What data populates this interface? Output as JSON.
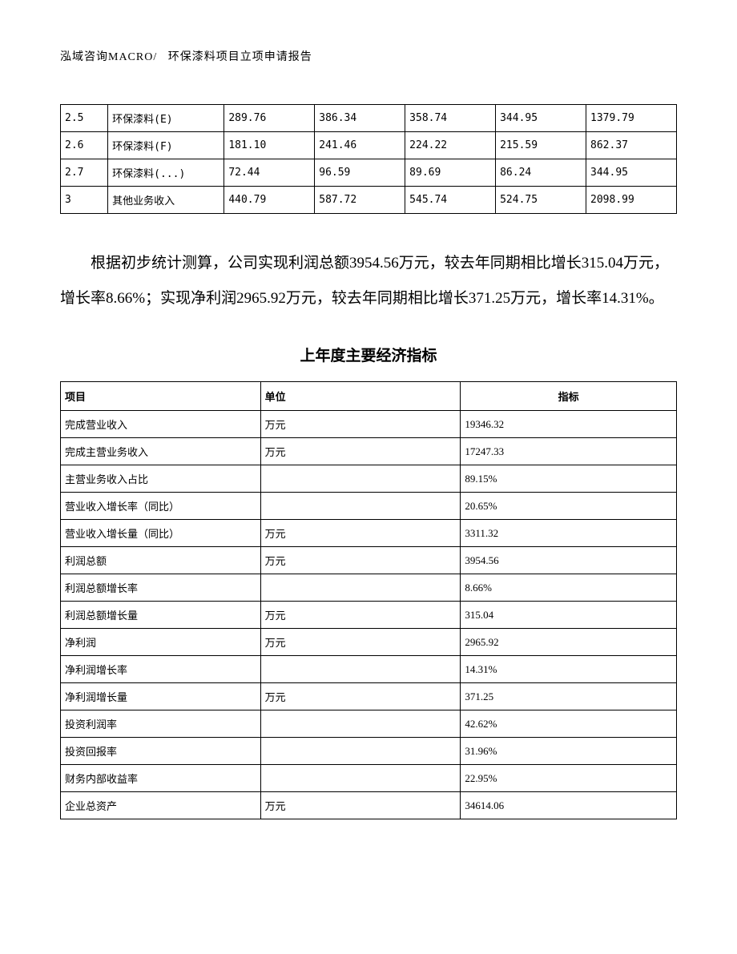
{
  "header": {
    "company": "泓域咨询MACRO/",
    "title": "环保漆料项目立项申请报告"
  },
  "table1": {
    "rows": [
      {
        "c1": "2.5",
        "c2": "环保漆料(E)",
        "c3": "289.76",
        "c4": "386.34",
        "c5": "358.74",
        "c6": "344.95",
        "c7": "1379.79"
      },
      {
        "c1": "2.6",
        "c2": "环保漆料(F)",
        "c3": "181.10",
        "c4": "241.46",
        "c5": "224.22",
        "c6": "215.59",
        "c7": "862.37"
      },
      {
        "c1": "2.7",
        "c2": "环保漆料(...)",
        "c3": "72.44",
        "c4": "96.59",
        "c5": "89.69",
        "c6": "86.24",
        "c7": "344.95"
      },
      {
        "c1": "3",
        "c2": "其他业务收入",
        "c3": "440.79",
        "c4": "587.72",
        "c5": "545.74",
        "c6": "524.75",
        "c7": "2098.99"
      }
    ]
  },
  "paragraph": "根据初步统计测算，公司实现利润总额3954.56万元，较去年同期相比增长315.04万元，增长率8.66%；实现净利润2965.92万元，较去年同期相比增长371.25万元，增长率14.31%。",
  "table2": {
    "title": "上年度主要经济指标",
    "headers": {
      "h1": "项目",
      "h2": "单位",
      "h3": "指标"
    },
    "rows": [
      {
        "c1": "完成营业收入",
        "c2": "万元",
        "c3": "19346.32"
      },
      {
        "c1": "完成主营业务收入",
        "c2": "万元",
        "c3": "17247.33"
      },
      {
        "c1": "主营业务收入占比",
        "c2": "",
        "c3": "89.15%"
      },
      {
        "c1": "营业收入增长率（同比）",
        "c2": "",
        "c3": "20.65%"
      },
      {
        "c1": "营业收入增长量（同比）",
        "c2": "万元",
        "c3": "3311.32"
      },
      {
        "c1": "利润总额",
        "c2": "万元",
        "c3": "3954.56"
      },
      {
        "c1": "利润总额增长率",
        "c2": "",
        "c3": "8.66%"
      },
      {
        "c1": "利润总额增长量",
        "c2": "万元",
        "c3": "315.04"
      },
      {
        "c1": "净利润",
        "c2": "万元",
        "c3": "2965.92"
      },
      {
        "c1": "净利润增长率",
        "c2": "",
        "c3": "14.31%"
      },
      {
        "c1": "净利润增长量",
        "c2": "万元",
        "c3": "371.25"
      },
      {
        "c1": "投资利润率",
        "c2": "",
        "c3": "42.62%"
      },
      {
        "c1": "投资回报率",
        "c2": "",
        "c3": "31.96%"
      },
      {
        "c1": "财务内部收益率",
        "c2": "",
        "c3": "22.95%"
      },
      {
        "c1": "企业总资产",
        "c2": "万元",
        "c3": "34614.06"
      }
    ]
  }
}
